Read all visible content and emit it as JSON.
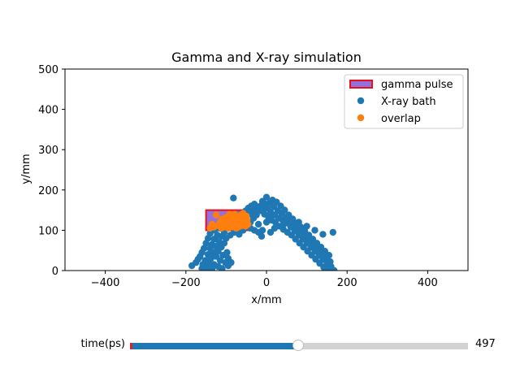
{
  "chart_data": {
    "type": "scatter",
    "title": "Gamma and X-ray simulation",
    "xlabel": "x/mm",
    "ylabel": "y/mm",
    "xlim": [
      -500,
      500
    ],
    "ylim": [
      0,
      500
    ],
    "xticks": [
      -400,
      -200,
      0,
      200,
      400
    ],
    "yticks": [
      0,
      100,
      200,
      300,
      400,
      500
    ],
    "legend_position": "top-right",
    "legend": [
      {
        "label": "gamma pulse",
        "kind": "rect",
        "color": "#9370db",
        "edge": "#e8101a"
      },
      {
        "label": "X-ray bath",
        "kind": "point",
        "color": "#1f77b4"
      },
      {
        "label": "overlap",
        "kind": "point",
        "color": "#ff7f0e"
      }
    ],
    "gamma_pulse": {
      "x0": -150,
      "x1": -45,
      "y0": 100,
      "y1": 150
    },
    "series": [
      {
        "name": "X-ray bath",
        "color": "#1f77b4",
        "points": [
          [
            -185,
            12
          ],
          [
            -175,
            20
          ],
          [
            -170,
            28
          ],
          [
            -165,
            35
          ],
          [
            -160,
            5
          ],
          [
            -160,
            45
          ],
          [
            -158,
            15
          ],
          [
            -155,
            55
          ],
          [
            -152,
            25
          ],
          [
            -150,
            68
          ],
          [
            -148,
            8
          ],
          [
            -145,
            40
          ],
          [
            -145,
            80
          ],
          [
            -142,
            18
          ],
          [
            -140,
            55
          ],
          [
            -140,
            92
          ],
          [
            -138,
            30
          ],
          [
            -135,
            65
          ],
          [
            -135,
            5
          ],
          [
            -132,
            45
          ],
          [
            -130,
            78
          ],
          [
            -130,
            15
          ],
          [
            -128,
            100
          ],
          [
            -125,
            35
          ],
          [
            -125,
            60
          ],
          [
            -122,
            88
          ],
          [
            -120,
            10
          ],
          [
            -120,
            48
          ],
          [
            -118,
            72
          ],
          [
            -115,
            25
          ],
          [
            -115,
            105
          ],
          [
            -112,
            58
          ],
          [
            -110,
            85
          ],
          [
            -110,
            5
          ],
          [
            -108,
            38
          ],
          [
            -105,
            95
          ],
          [
            -105,
            68
          ],
          [
            -102,
            20
          ],
          [
            -100,
            110
          ],
          [
            -100,
            80
          ],
          [
            -98,
            45
          ],
          [
            -95,
            12
          ],
          [
            -95,
            30
          ],
          [
            -92,
            118
          ],
          [
            -90,
            88
          ],
          [
            -88,
            20
          ],
          [
            -85,
            105
          ],
          [
            -82,
            180
          ],
          [
            -80,
            95
          ],
          [
            -78,
            122
          ],
          [
            -75,
            100
          ],
          [
            -72,
            130
          ],
          [
            -70,
            110
          ],
          [
            -68,
            90
          ],
          [
            -65,
            140
          ],
          [
            -62,
            125
          ],
          [
            -60,
            115
          ],
          [
            -58,
            100
          ],
          [
            -55,
            135
          ],
          [
            -52,
            148
          ],
          [
            -50,
            128
          ],
          [
            -48,
            112
          ],
          [
            -45,
            155
          ],
          [
            -42,
            140
          ],
          [
            -40,
            120
          ],
          [
            -38,
            160
          ],
          [
            -35,
            145
          ],
          [
            -32,
            130
          ],
          [
            -30,
            165
          ],
          [
            -28,
            150
          ],
          [
            -25,
            138
          ],
          [
            -22,
            158
          ],
          [
            -20,
            95
          ],
          [
            -18,
            148
          ],
          [
            -15,
            160
          ],
          [
            -12,
            85
          ],
          [
            -10,
            172
          ],
          [
            -8,
            150
          ],
          [
            -5,
            140
          ],
          [
            -2,
            165
          ],
          [
            0,
            182
          ],
          [
            2,
            155
          ],
          [
            5,
            132
          ],
          [
            8,
            168
          ],
          [
            10,
            145
          ],
          [
            12,
            125
          ],
          [
            15,
            175
          ],
          [
            18,
            158
          ],
          [
            20,
            138
          ],
          [
            22,
            120
          ],
          [
            25,
            170
          ],
          [
            28,
            148
          ],
          [
            30,
            130
          ],
          [
            32,
            110
          ],
          [
            35,
            160
          ],
          [
            38,
            142
          ],
          [
            40,
            125
          ],
          [
            42,
            102
          ],
          [
            45,
            150
          ],
          [
            48,
            132
          ],
          [
            50,
            118
          ],
          [
            52,
            95
          ],
          [
            55,
            138
          ],
          [
            58,
            122
          ],
          [
            60,
            108
          ],
          [
            62,
            88
          ],
          [
            65,
            128
          ],
          [
            68,
            112
          ],
          [
            70,
            98
          ],
          [
            72,
            78
          ],
          [
            75,
            118
          ],
          [
            78,
            102
          ],
          [
            80,
            88
          ],
          [
            82,
            68
          ],
          [
            85,
            108
          ],
          [
            88,
            92
          ],
          [
            90,
            78
          ],
          [
            92,
            58
          ],
          [
            95,
            98
          ],
          [
            98,
            82
          ],
          [
            100,
            68
          ],
          [
            102,
            48
          ],
          [
            105,
            88
          ],
          [
            108,
            72
          ],
          [
            110,
            58
          ],
          [
            112,
            38
          ],
          [
            115,
            78
          ],
          [
            118,
            62
          ],
          [
            120,
            48
          ],
          [
            122,
            28
          ],
          [
            125,
            68
          ],
          [
            128,
            52
          ],
          [
            130,
            38
          ],
          [
            132,
            18
          ],
          [
            135,
            58
          ],
          [
            138,
            42
          ],
          [
            140,
            28
          ],
          [
            142,
            8
          ],
          [
            145,
            48
          ],
          [
            148,
            32
          ],
          [
            150,
            18
          ],
          [
            152,
            5
          ],
          [
            155,
            38
          ],
          [
            158,
            22
          ],
          [
            160,
            10
          ],
          [
            165,
            95
          ],
          [
            168,
            0
          ],
          [
            -30,
            100
          ],
          [
            -10,
            100
          ],
          [
            10,
            95
          ],
          [
            -40,
            105
          ],
          [
            -20,
            115
          ],
          [
            0,
            120
          ],
          [
            20,
            105
          ],
          [
            40,
            110
          ],
          [
            60,
            115
          ],
          [
            80,
            120
          ],
          [
            100,
            110
          ],
          [
            120,
            100
          ],
          [
            140,
            90
          ]
        ]
      },
      {
        "name": "overlap",
        "color": "#ff7f0e",
        "points": [
          [
            -140,
            105
          ],
          [
            -135,
            115
          ],
          [
            -130,
            108
          ],
          [
            -125,
            138
          ],
          [
            -120,
            112
          ],
          [
            -115,
            120
          ],
          [
            -112,
            105
          ],
          [
            -110,
            128
          ],
          [
            -105,
            115
          ],
          [
            -102,
            108
          ],
          [
            -100,
            132
          ],
          [
            -98,
            118
          ],
          [
            -95,
            125
          ],
          [
            -92,
            110
          ],
          [
            -90,
            135
          ],
          [
            -88,
            120
          ],
          [
            -85,
            128
          ],
          [
            -82,
            112
          ],
          [
            -80,
            140
          ],
          [
            -78,
            125
          ],
          [
            -75,
            118
          ],
          [
            -72,
            132
          ],
          [
            -70,
            108
          ],
          [
            -68,
            122
          ],
          [
            -65,
            138
          ],
          [
            -62,
            115
          ],
          [
            -60,
            128
          ],
          [
            -58,
            142
          ],
          [
            -55,
            120
          ],
          [
            -52,
            110
          ],
          [
            -50,
            135
          ],
          [
            -48,
            125
          ],
          [
            -46,
            115
          ],
          [
            -95,
            105
          ],
          [
            -85,
            108
          ],
          [
            -75,
            105
          ],
          [
            -65,
            110
          ],
          [
            -115,
            110
          ],
          [
            -108,
            125
          ],
          [
            -92,
            140
          ]
        ]
      }
    ]
  },
  "slider": {
    "label": "time(ps)",
    "value": 497,
    "value_text": "497",
    "min": 0,
    "max": 1000
  }
}
